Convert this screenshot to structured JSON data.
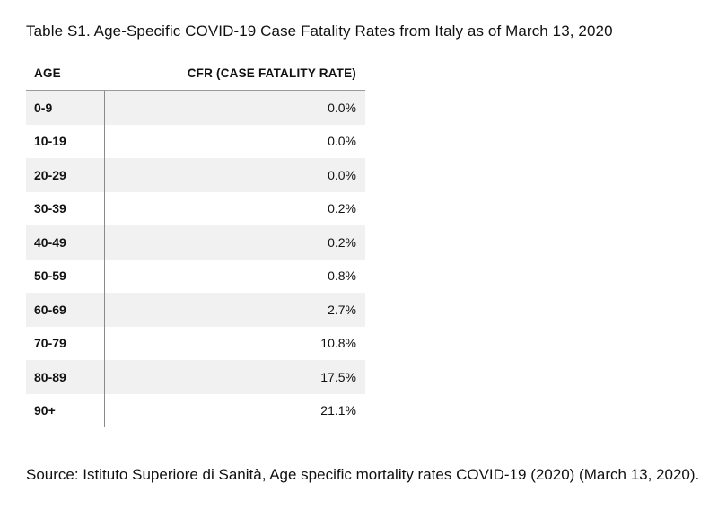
{
  "caption": "Table S1. Age-Specific COVID-19 Case Fatality Rates from Italy as of March 13, 2020",
  "table": {
    "headers": {
      "age": "AGE",
      "cfr": "CFR (CASE FATALITY RATE)"
    },
    "rows": [
      {
        "age": "0-9",
        "cfr": "0.0%"
      },
      {
        "age": "10-19",
        "cfr": "0.0%"
      },
      {
        "age": "20-29",
        "cfr": "0.0%"
      },
      {
        "age": "30-39",
        "cfr": "0.2%"
      },
      {
        "age": "40-49",
        "cfr": "0.2%"
      },
      {
        "age": "50-59",
        "cfr": "0.8%"
      },
      {
        "age": "60-69",
        "cfr": "2.7%"
      },
      {
        "age": "70-79",
        "cfr": "10.8%"
      },
      {
        "age": "80-89",
        "cfr": "17.5%"
      },
      {
        "age": "90+",
        "cfr": "21.1%"
      }
    ]
  },
  "source": "Source: Istituto Superiore di Sanità, Age specific mortality rates COVID-19 (2020) (March 13, 2020)."
}
